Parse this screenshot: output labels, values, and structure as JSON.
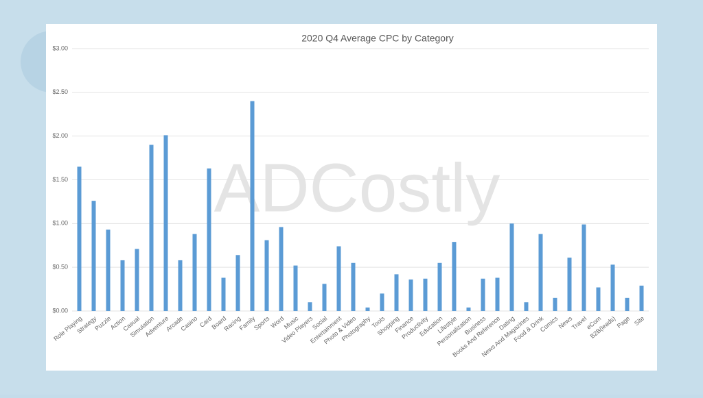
{
  "chart_data": {
    "type": "bar",
    "title": "2020 Q4 Average CPC by Category",
    "watermark": "ADCostly",
    "categories": [
      "Role Playing",
      "Strategy",
      "Puzzle",
      "Action",
      "Casual",
      "Simulation",
      "Adventure",
      "Arcade",
      "Casino",
      "Card",
      "Board",
      "Racing",
      "Family",
      "Sports",
      "Word",
      "Music",
      "Video Players",
      "Social",
      "Entertainment",
      "Photo & Video",
      "Photography",
      "Tools",
      "Shopping",
      "Finance",
      "Productivity",
      "Education",
      "Lifestyle",
      "Personalization",
      "Business",
      "Books And Reference",
      "Dating",
      "News And Magazines",
      "Food & Drink",
      "Comics",
      "News",
      "Travel",
      "eCom",
      "B2B(leads)",
      "Page",
      "Site"
    ],
    "values": [
      1.65,
      1.26,
      0.93,
      0.58,
      0.71,
      1.9,
      2.01,
      0.58,
      0.88,
      1.63,
      0.38,
      0.64,
      2.4,
      0.81,
      0.96,
      0.52,
      0.1,
      0.31,
      0.74,
      0.55,
      0.04,
      0.2,
      0.42,
      0.36,
      0.37,
      0.55,
      0.79,
      0.04,
      0.37,
      0.38,
      1.0,
      0.1,
      0.88,
      0.15,
      0.61,
      0.99,
      0.27,
      0.53,
      0.15,
      0.29
    ],
    "color": "#5b9bd5",
    "ylim": [
      0,
      3
    ],
    "yticks": [
      {
        "value": 0,
        "label": "$0.00"
      },
      {
        "value": 0.5,
        "label": "$0.50"
      },
      {
        "value": 1,
        "label": "$1.00"
      },
      {
        "value": 1.5,
        "label": "$1.50"
      },
      {
        "value": 2,
        "label": "$2.00"
      },
      {
        "value": 2.5,
        "label": "$2.50"
      },
      {
        "value": 3,
        "label": "$3.00"
      }
    ],
    "grid": true
  }
}
